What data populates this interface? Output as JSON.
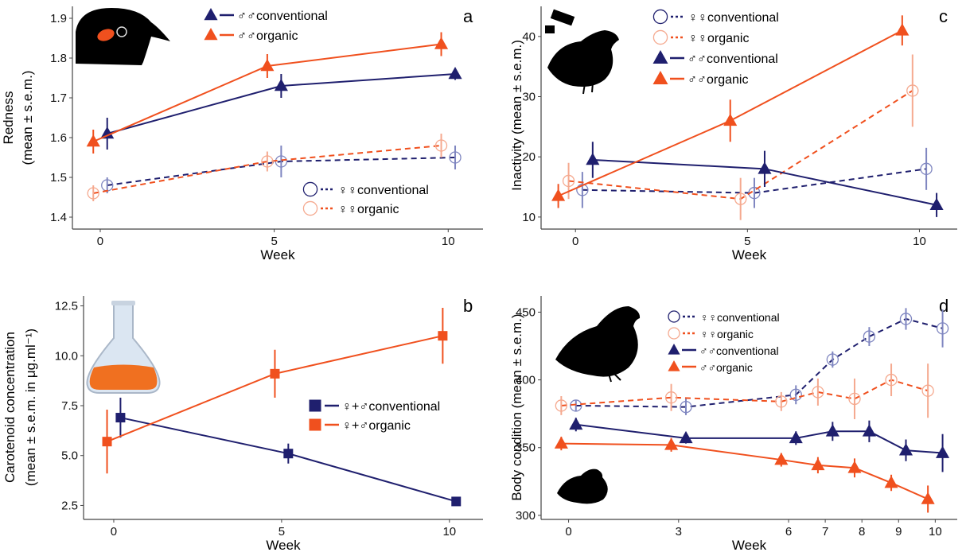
{
  "colors": {
    "navy": "#1f1f6e",
    "orange": "#f0501e",
    "navy_light": "#7f86c0",
    "orange_light": "#f5a98f"
  },
  "chart_data": [
    {
      "panel": "a",
      "type": "line",
      "xlabel": "Week",
      "ylabel": [
        "Redness",
        "(mean ± s.e.m.)"
      ],
      "xlim": [
        -0.8,
        11
      ],
      "ylim": [
        1.37,
        1.93
      ],
      "xticks": [
        0,
        5,
        10
      ],
      "yticks": [
        1.4,
        1.5,
        1.6,
        1.7,
        1.8,
        1.9
      ],
      "grid": false,
      "legend_position": "top-left and bottom-right",
      "series": [
        {
          "name": "♂♂conventional",
          "color": "navy",
          "marker": "triangle",
          "dash": false,
          "legend": "top",
          "x": [
            0.2,
            5.2,
            10.2
          ],
          "y": [
            1.61,
            1.73,
            1.76
          ],
          "err": [
            0.04,
            0.03,
            0.015
          ]
        },
        {
          "name": "♂♂organic",
          "color": "orange",
          "marker": "triangle",
          "dash": false,
          "legend": "top",
          "x": [
            -0.2,
            4.8,
            9.8
          ],
          "y": [
            1.59,
            1.78,
            1.835
          ],
          "err": [
            0.03,
            0.03,
            0.03
          ]
        },
        {
          "name": "♀♀conventional",
          "color": "navy",
          "marker": "circle",
          "dash": true,
          "legend": "bottom",
          "x": [
            0.2,
            5.2,
            10.2
          ],
          "y": [
            1.48,
            1.54,
            1.55
          ],
          "err": [
            0.02,
            0.04,
            0.03
          ]
        },
        {
          "name": "♀♀organic",
          "color": "orange",
          "marker": "circle",
          "dash": true,
          "legend": "bottom",
          "x": [
            -0.2,
            4.8,
            9.8
          ],
          "y": [
            1.46,
            1.54,
            1.58
          ],
          "err": [
            0.02,
            0.025,
            0.03
          ]
        }
      ]
    },
    {
      "panel": "c",
      "type": "line",
      "xlabel": "Week",
      "ylabel": [
        "Inactivity (mean ± s.e.m.)"
      ],
      "xlim": [
        -1,
        11.1
      ],
      "ylim": [
        8,
        45
      ],
      "xticks": [
        0,
        5,
        10
      ],
      "yticks": [
        10,
        20,
        30,
        40
      ],
      "grid": false,
      "legend_position": "top",
      "series": [
        {
          "name": "♀♀conventional",
          "color": "navy",
          "marker": "circle",
          "dash": true,
          "x": [
            0.2,
            5.2,
            10.2
          ],
          "y": [
            14.5,
            14,
            18
          ],
          "err": [
            3,
            2.5,
            3.5
          ]
        },
        {
          "name": "♀♀organic",
          "color": "orange",
          "marker": "circle",
          "dash": true,
          "x": [
            -0.2,
            4.8,
            9.8
          ],
          "y": [
            16,
            13,
            31
          ],
          "err": [
            3,
            3.5,
            6
          ]
        },
        {
          "name": "♂♂conventional",
          "color": "navy",
          "marker": "triangle",
          "dash": false,
          "x": [
            0.5,
            5.5,
            10.5
          ],
          "y": [
            19.5,
            18,
            12
          ],
          "err": [
            3,
            3,
            2
          ]
        },
        {
          "name": "♂♂organic",
          "color": "orange",
          "marker": "triangle",
          "dash": false,
          "x": [
            -0.5,
            4.5,
            9.5
          ],
          "y": [
            13.5,
            26,
            41
          ],
          "err": [
            2,
            3.5,
            2.5
          ]
        }
      ]
    },
    {
      "panel": "b",
      "type": "line",
      "xlabel": "Week",
      "ylabel": [
        "Carotenoid concentration",
        "(mean ± s.e.m. in μg.ml⁻¹)"
      ],
      "xlim": [
        -0.9,
        11
      ],
      "ylim": [
        1.8,
        13
      ],
      "xticks": [
        0,
        5,
        10
      ],
      "yticks": [
        2.5,
        5.0,
        7.5,
        10.0,
        12.5
      ],
      "ytick_labels": [
        "2.5",
        "5.0",
        "7.5",
        "10.0",
        "12.5"
      ],
      "grid": false,
      "legend_position": "center-right",
      "series": [
        {
          "name": "♀+♂conventional",
          "color": "navy",
          "marker": "square",
          "dash": false,
          "x": [
            0.2,
            5.2,
            10.2
          ],
          "y": [
            6.9,
            5.1,
            2.7
          ],
          "err": [
            1.0,
            0.5,
            0.15
          ]
        },
        {
          "name": "♀+♂organic",
          "color": "orange",
          "marker": "square",
          "dash": false,
          "x": [
            -0.2,
            4.8,
            9.8
          ],
          "y": [
            5.7,
            9.1,
            11.0
          ],
          "err": [
            1.6,
            1.2,
            1.4
          ]
        }
      ]
    },
    {
      "panel": "d",
      "type": "line",
      "xlabel": "Week",
      "ylabel": [
        "Body condition (mean ± s.e.m.)"
      ],
      "xlim": [
        -0.75,
        10.6
      ],
      "ylim": [
        297,
        462
      ],
      "xticks": [
        0,
        3,
        6,
        7,
        8,
        9,
        10
      ],
      "yticks": [
        300,
        350,
        400,
        450
      ],
      "grid": false,
      "legend_position": "top-center",
      "series": [
        {
          "name": "♀♀conventional",
          "color": "navy",
          "marker": "circle",
          "dash": true,
          "x": [
            0.2,
            3.2,
            6.2,
            7.2,
            8.2,
            9.2,
            10.2
          ],
          "y": [
            381,
            380,
            389,
            415,
            432,
            445,
            438
          ],
          "err": [
            4,
            6,
            7,
            6,
            7,
            8,
            14
          ]
        },
        {
          "name": "♀♀organic",
          "color": "orange",
          "marker": "circle",
          "dash": true,
          "x": [
            -0.2,
            2.8,
            5.8,
            6.8,
            7.8,
            8.8,
            9.8
          ],
          "y": [
            381,
            387,
            384,
            391,
            386,
            400,
            392
          ],
          "err": [
            7,
            10,
            7,
            10,
            15,
            12,
            20
          ]
        },
        {
          "name": "♂♂conventional",
          "color": "navy",
          "marker": "triangle",
          "dash": false,
          "x": [
            0.2,
            3.2,
            6.2,
            7.2,
            8.2,
            9.2,
            10.2
          ],
          "y": [
            367,
            357,
            357,
            362,
            362,
            348,
            346
          ],
          "err": [
            5,
            4,
            5,
            7,
            8,
            8,
            14
          ]
        },
        {
          "name": "♂♂organic",
          "color": "orange",
          "marker": "triangle",
          "dash": false,
          "x": [
            -0.2,
            2.8,
            5.8,
            6.8,
            7.8,
            8.8,
            9.8
          ],
          "y": [
            353,
            352,
            341,
            337,
            335,
            324,
            312
          ],
          "err": [
            5,
            5,
            5,
            6,
            7,
            6,
            10
          ]
        }
      ]
    }
  ]
}
